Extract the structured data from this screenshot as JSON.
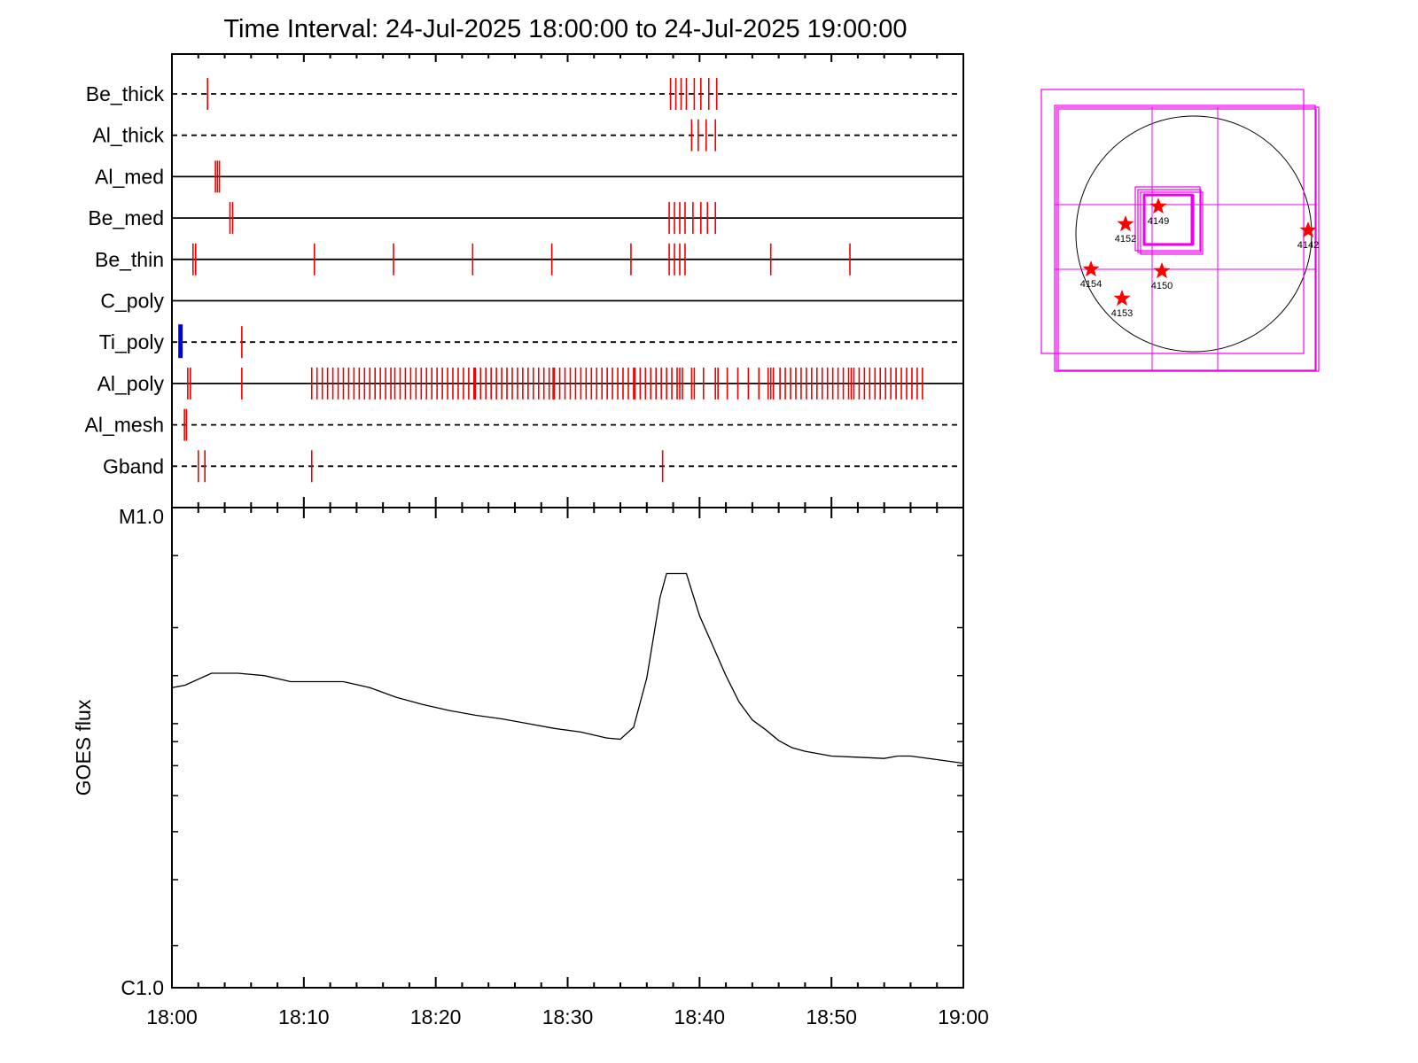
{
  "title": "Time Interval: 24-Jul-2025 18:00:00 to 24-Jul-2025 19:00:00",
  "colors": {
    "event_mark": "#ee0000",
    "ti_poly_mark": "#0000dd",
    "box": "#ee00ee",
    "curve": "#000000",
    "star": "#ff0000"
  },
  "chart_data": [
    {
      "type": "timeline",
      "x_range_minutes": [
        0,
        60
      ],
      "rows": [
        {
          "label": "Be_thick",
          "line": "dashed",
          "marks": [
            2.7,
            37.8,
            38.2,
            38.6,
            39.0,
            39.6,
            40.1,
            40.7,
            41.3
          ]
        },
        {
          "label": "Al_thick",
          "line": "dashed",
          "marks": [
            39.4,
            39.9,
            40.5,
            41.2
          ]
        },
        {
          "label": "Al_med",
          "line": "solid",
          "marks": [
            3.3,
            3.45,
            3.6
          ]
        },
        {
          "label": "Be_med",
          "line": "solid",
          "marks": [
            4.4,
            4.6,
            37.7,
            38.1,
            38.5,
            38.9,
            39.5,
            40.1,
            40.6,
            41.2
          ]
        },
        {
          "label": "Be_thin",
          "line": "solid",
          "marks": [
            1.6,
            1.8,
            10.8,
            16.8,
            22.8,
            28.8,
            34.8,
            37.7,
            38.1,
            38.5,
            38.9,
            45.4,
            51.4
          ]
        },
        {
          "label": "C_poly",
          "line": "solid",
          "marks": []
        },
        {
          "label": "Ti_poly",
          "line": "dashed",
          "marks": [
            5.3
          ],
          "blue_marks": [
            0.65
          ]
        },
        {
          "label": "Al_poly",
          "line": "solid",
          "marks": [
            1.2,
            1.4,
            5.3,
            10.6,
            11.0,
            11.4,
            11.8,
            12.2,
            12.6,
            13.0,
            13.4,
            13.8,
            14.2,
            14.6,
            15.0,
            15.4,
            15.8,
            16.2,
            16.6,
            16.9,
            17.3,
            17.7,
            18.1,
            18.5,
            18.9,
            19.3,
            19.7,
            20.1,
            20.5,
            20.9,
            21.3,
            21.7,
            22.1,
            22.5,
            22.9,
            23.0,
            23.4,
            23.8,
            24.2,
            24.6,
            25.0,
            25.4,
            25.8,
            26.2,
            26.6,
            27.0,
            27.4,
            27.8,
            28.2,
            28.6,
            28.9,
            29.0,
            29.4,
            29.8,
            30.2,
            30.6,
            31.0,
            31.4,
            31.8,
            32.2,
            32.6,
            33.0,
            33.4,
            33.8,
            34.2,
            34.6,
            35.0,
            35.1,
            35.5,
            35.9,
            36.3,
            36.7,
            37.1,
            37.5,
            37.9,
            38.3,
            38.5,
            38.7,
            39.4,
            39.6,
            40.3,
            41.2,
            41.4,
            42.1,
            42.9,
            43.7,
            44.5,
            45.2,
            45.4,
            45.6,
            46.1,
            46.5,
            46.9,
            47.3,
            47.7,
            48.1,
            48.5,
            48.9,
            49.3,
            49.7,
            50.1,
            50.5,
            50.9,
            51.3,
            51.5,
            51.7,
            52.1,
            52.5,
            52.9,
            53.3,
            53.7,
            54.1,
            54.5,
            54.9,
            55.3,
            55.7,
            56.1,
            56.5,
            56.9
          ]
        },
        {
          "label": "Al_mesh",
          "line": "dashed",
          "marks": [
            0.95,
            1.1
          ]
        },
        {
          "label": "Gband",
          "line": "dashed",
          "marks": [
            2.0,
            2.5,
            10.6,
            37.2
          ]
        }
      ]
    },
    {
      "type": "line",
      "x_ticks": [
        "18:00",
        "18:10",
        "18:20",
        "18:30",
        "18:40",
        "18:50",
        "19:00"
      ],
      "ylabel": "GOES flux",
      "y_scale": "log",
      "ylim": [
        "C1.0",
        "M1.0"
      ],
      "y_tick_labels": [
        "C1.0",
        "M1.0"
      ],
      "grid": false,
      "series": [
        {
          "x": [
            0,
            1,
            3,
            5,
            7,
            9,
            11,
            13,
            15,
            17,
            19,
            21,
            23,
            25,
            27,
            29,
            31,
            33,
            34,
            35,
            36,
            37,
            37.5,
            39,
            40,
            41,
            42,
            43,
            44,
            45,
            46,
            47,
            48,
            50,
            52,
            54,
            55,
            56,
            58,
            60
          ],
          "y": [
            3.5,
            3.52,
            3.62,
            3.62,
            3.6,
            3.55,
            3.55,
            3.55,
            3.5,
            3.42,
            3.36,
            3.31,
            3.27,
            3.24,
            3.2,
            3.16,
            3.13,
            3.08,
            3.07,
            3.17,
            3.58,
            4.25,
            4.45,
            4.45,
            4.1,
            3.85,
            3.6,
            3.38,
            3.23,
            3.15,
            3.06,
            3.0,
            2.97,
            2.93,
            2.92,
            2.91,
            2.93,
            2.93,
            2.9,
            2.87
          ]
        }
      ]
    },
    {
      "type": "sun_map",
      "regions": [
        "4149",
        "4152",
        "4142",
        "4154",
        "4150",
        "4153"
      ]
    }
  ]
}
